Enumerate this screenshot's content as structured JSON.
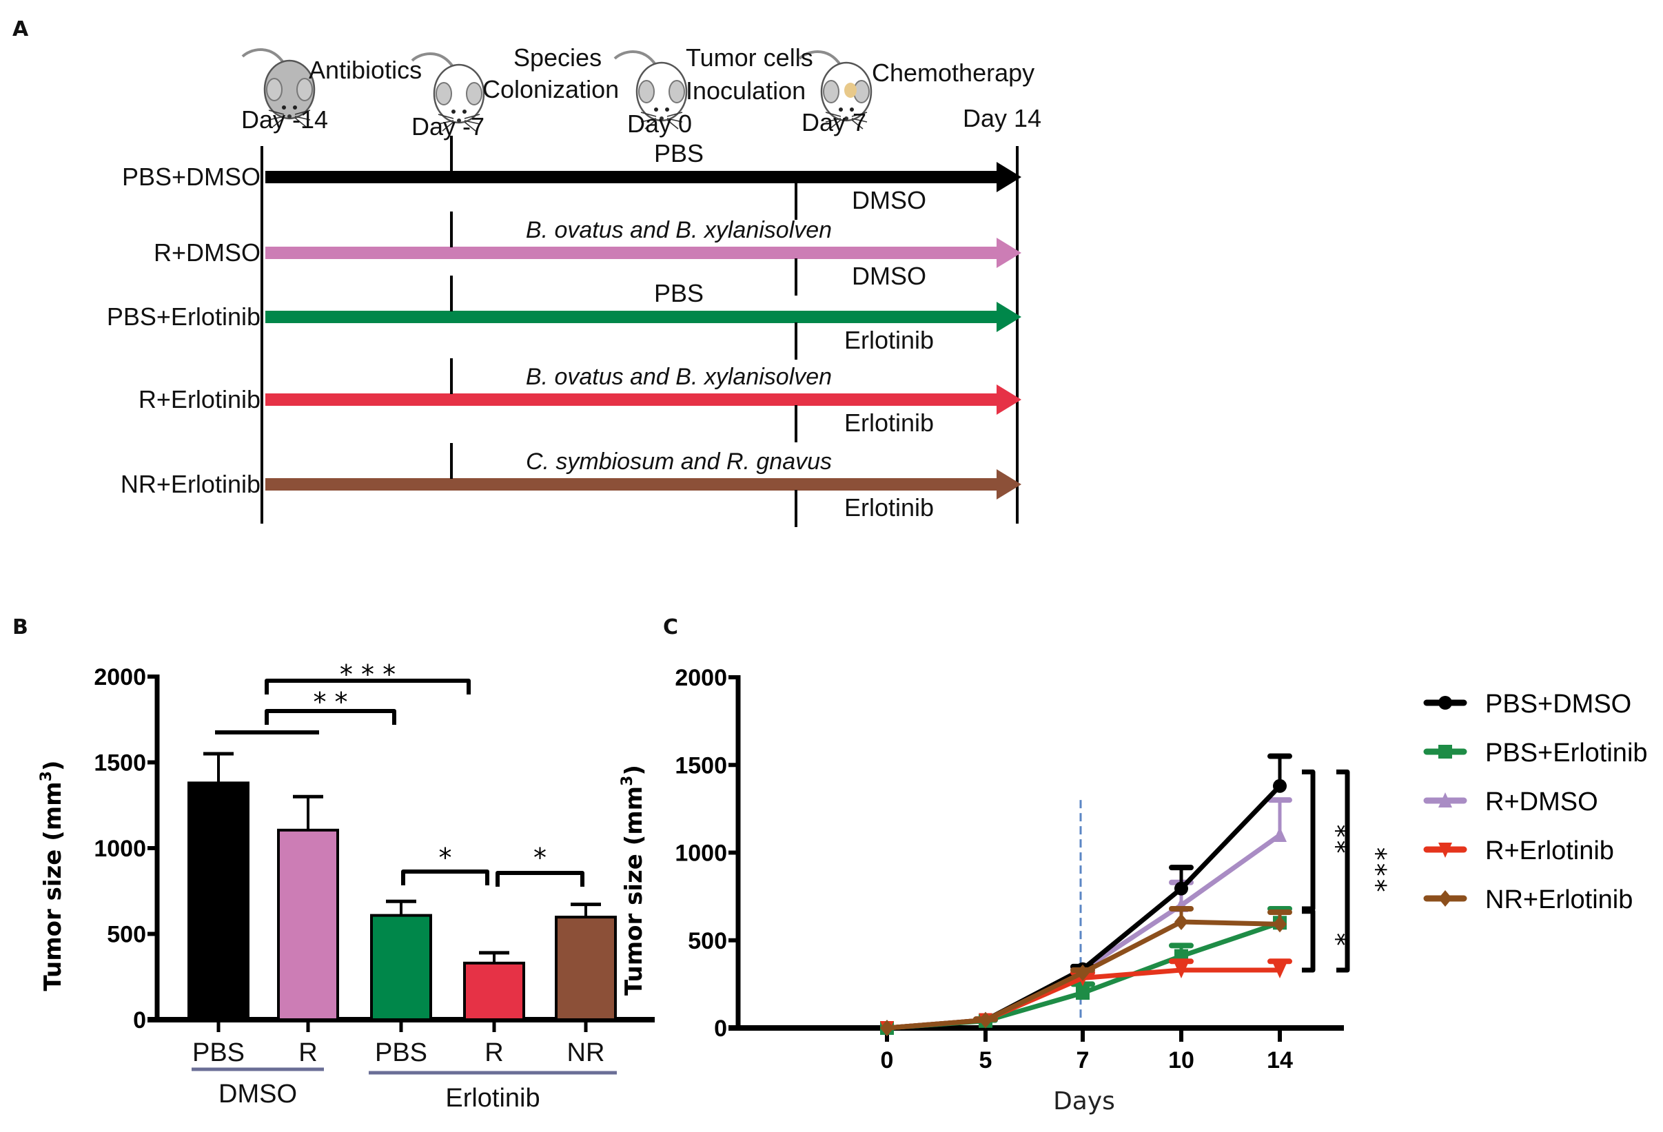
{
  "panels": {
    "a": {
      "label": "A",
      "stages": [
        {
          "label_lines": [
            "Antibiotics"
          ],
          "day": "Day -14",
          "mouse": "gray-mouse-icon"
        },
        {
          "label_lines": [
            "Species",
            "Colonization"
          ],
          "day": "Day -7",
          "mouse": "white-mouse-icon"
        },
        {
          "label_lines": [
            "Tumor cells",
            "Inoculation"
          ],
          "day": "Day 0",
          "mouse": "white-mouse-icon"
        },
        {
          "label_lines": [
            "Chemotherapy"
          ],
          "day": "Day 7",
          "mouse": "tumor-mouse-icon"
        },
        {
          "label_lines": [],
          "day": "Day 14",
          "mouse": null
        }
      ],
      "groups": [
        {
          "name": "PBS+DMSO",
          "color": "#000000",
          "colonization": "PBS",
          "colonization_italic": false,
          "treatment": "DMSO"
        },
        {
          "name": "R+DMSO",
          "color": "#cc7db5",
          "colonization": "B. ovatus and B. xylanisolven",
          "colonization_italic": true,
          "treatment": "DMSO"
        },
        {
          "name": "PBS+Erlotinib",
          "color": "#00874a",
          "colonization": "PBS",
          "colonization_italic": false,
          "treatment": "Erlotinib"
        },
        {
          "name": "R+Erlotinib",
          "color": "#e63246",
          "colonization": "B. ovatus and B. xylanisolven",
          "colonization_italic": true,
          "treatment": "Erlotinib"
        },
        {
          "name": "NR+Erlotinib",
          "color": "#8c5038",
          "colonization": "C. symbiosum and R. gnavus",
          "colonization_italic": true,
          "treatment": "Erlotinib"
        }
      ]
    },
    "b": {
      "label": "B"
    },
    "c": {
      "label": "C",
      "legend_title": ""
    }
  },
  "chart_data": [
    {
      "id": "panel-b",
      "type": "bar",
      "title": "",
      "xlabel": "",
      "ylabel": "Tumor size (mm3)",
      "ylabel_main": "Tumor size (mm",
      "ylabel_sup": "3",
      "ylabel_close": ")",
      "ylim": [
        0,
        2000
      ],
      "yticks": [
        0,
        500,
        1000,
        1500,
        2000
      ],
      "categories": [
        "PBS",
        "R",
        "PBS",
        "R",
        "NR"
      ],
      "groups": [
        {
          "label": "DMSO",
          "members": [
            0,
            1
          ]
        },
        {
          "label": "Erlotinib",
          "members": [
            2,
            3,
            4
          ]
        }
      ],
      "group_line_color": "#6a6e96",
      "values": [
        1380,
        1105,
        608,
        330,
        598
      ],
      "error_upper": [
        1550,
        1300,
        690,
        390,
        672
      ],
      "colors": [
        "#000000",
        "#cc7db5",
        "#00874a",
        "#e63246",
        "#8c5038"
      ],
      "significance": [
        {
          "from": 0,
          "to": 1,
          "label": "",
          "style": "line"
        },
        {
          "from": 1,
          "to": 2,
          "label": "* *",
          "style": "bracket"
        },
        {
          "from": 1,
          "to": 3,
          "label": "* * *",
          "style": "bracket"
        },
        {
          "from": 2,
          "to": 3,
          "label": "*",
          "style": "bracket"
        },
        {
          "from": 3,
          "to": 4,
          "label": "*",
          "style": "bracket"
        }
      ],
      "grid": false
    },
    {
      "id": "panel-c",
      "type": "line",
      "title": "",
      "xlabel": "Days",
      "ylabel": "Tumor size (mm3)",
      "ylabel_main": "Tumor size (mm",
      "ylabel_sup": "3",
      "ylabel_close": ")",
      "x": [
        0,
        5,
        7,
        10,
        14
      ],
      "x_tick_labels": [
        "0",
        "5",
        "7",
        "10",
        "14"
      ],
      "ylim": [
        0,
        2000
      ],
      "yticks": [
        0,
        500,
        1000,
        1500,
        2000
      ],
      "vline": {
        "x": 7,
        "style": "dashed",
        "color": "#5b86c4",
        "top_value": 1300
      },
      "series": [
        {
          "name": "PBS+DMSO",
          "color": "#000000",
          "marker": "circle",
          "values": [
            0,
            45,
            335,
            795,
            1380
          ],
          "error_upper": [
            0,
            50,
            350,
            915,
            1550
          ]
        },
        {
          "name": "PBS+Erlotinib",
          "color": "#1e8c46",
          "marker": "square",
          "values": [
            0,
            40,
            200,
            410,
            600
          ],
          "error_upper": [
            0,
            45,
            250,
            470,
            680
          ]
        },
        {
          "name": "R+DMSO",
          "color": "#a98cc4",
          "marker": "triangle-up",
          "values": [
            0,
            42,
            330,
            700,
            1100
          ],
          "error_upper": [
            0,
            45,
            345,
            830,
            1300
          ]
        },
        {
          "name": "R+Erlotinib",
          "color": "#e5341c",
          "marker": "triangle-down",
          "values": [
            0,
            45,
            285,
            330,
            330
          ],
          "error_upper": [
            0,
            50,
            315,
            380,
            380
          ]
        },
        {
          "name": "NR+Erlotinib",
          "color": "#8c4f1c",
          "marker": "diamond",
          "values": [
            0,
            45,
            315,
            605,
            592
          ],
          "error_upper": [
            0,
            50,
            330,
            680,
            660
          ]
        }
      ],
      "legend_position": "right",
      "significance": [
        {
          "from": "PBS+DMSO",
          "to": "PBS+Erlotinib",
          "label": "**"
        },
        {
          "from": "PBS+Erlotinib",
          "to": "R+Erlotinib",
          "label": "*"
        },
        {
          "from": "PBS+DMSO",
          "to": "R+Erlotinib",
          "label": "***"
        }
      ],
      "grid": false
    }
  ]
}
